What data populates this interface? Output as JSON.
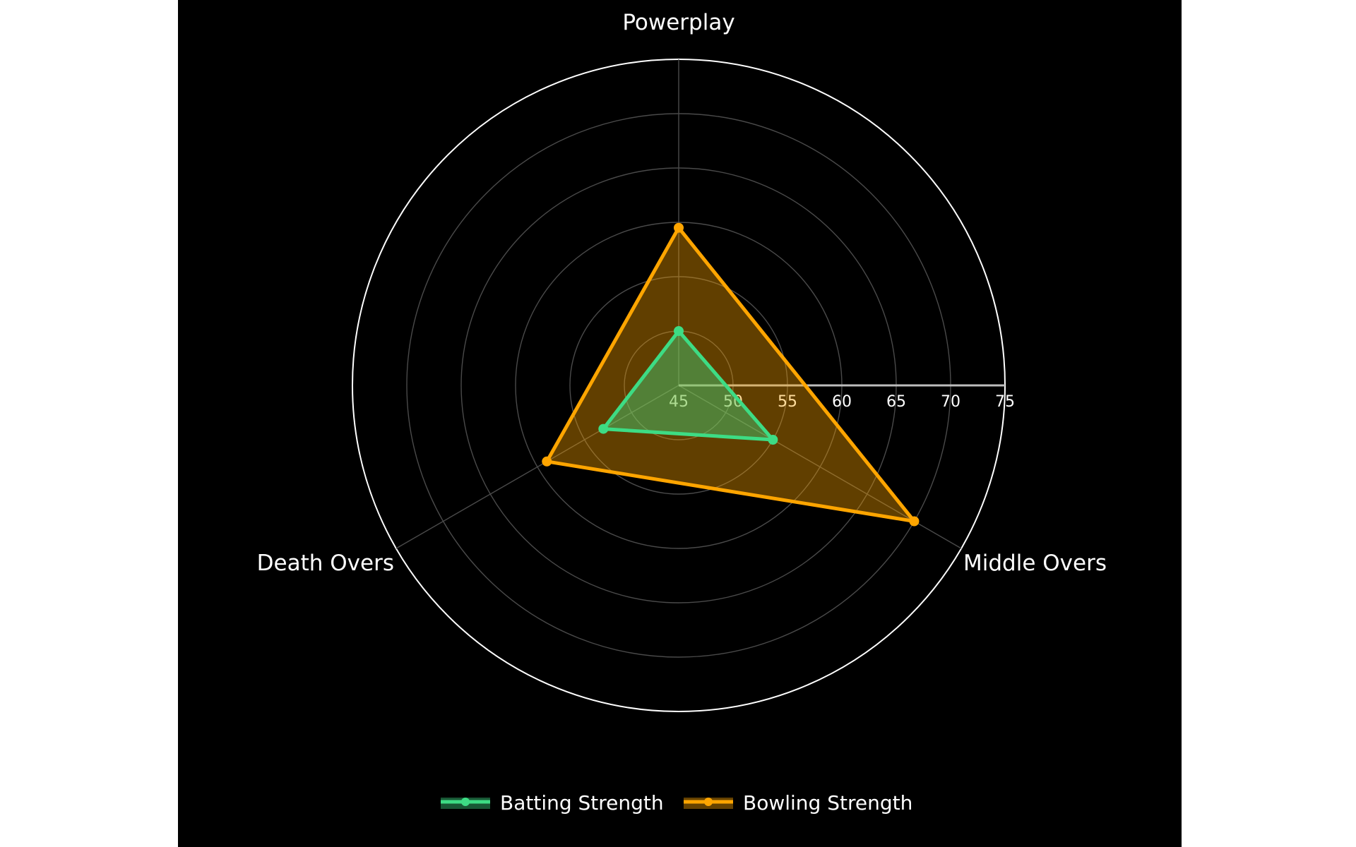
{
  "chart_data": {
    "type": "radar",
    "title": "",
    "categories": [
      "Powerplay",
      "Middle Overs",
      "Death Overs"
    ],
    "radial_axis": {
      "range": [
        45,
        75
      ],
      "ticks": [
        "45",
        "50",
        "55",
        "60",
        "65",
        "70",
        "75"
      ],
      "grid": true
    },
    "series": [
      {
        "name": "Batting Strength",
        "color": "#3ddc84",
        "values": [
          50,
          55,
          53
        ]
      },
      {
        "name": "Bowling Strength",
        "color": "#ffa500",
        "values": [
          59.5,
          70,
          59
        ]
      }
    ],
    "legend": {
      "position": "bottom-center",
      "orientation": "horizontal"
    },
    "background": "#000000"
  }
}
